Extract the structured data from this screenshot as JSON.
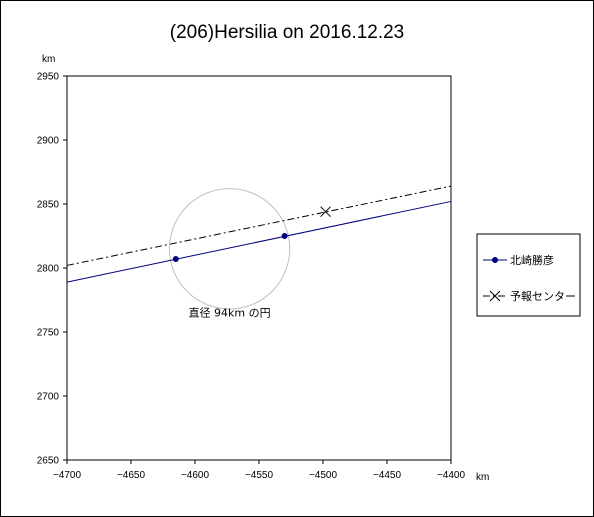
{
  "chart_data": {
    "type": "line",
    "title": "(206)Hersilia on 2016.12.23",
    "xlabel": "km",
    "ylabel": "km",
    "xlim": [
      -4700,
      -4400
    ],
    "ylim": [
      2650,
      2950
    ],
    "x_ticks": [
      -4700,
      -4650,
      -4600,
      -4550,
      -4500,
      -4450,
      -4400
    ],
    "y_ticks": [
      2650,
      2700,
      2750,
      2800,
      2850,
      2900,
      2950
    ],
    "x_tick_labels": [
      "−4700",
      "−4650",
      "−4600",
      "−4550",
      "−4500",
      "−4450",
      "−4400"
    ],
    "y_tick_labels": [
      "2650",
      "2700",
      "2750",
      "2800",
      "2850",
      "2900",
      "2950"
    ],
    "grid": false,
    "legend_position": "right",
    "series": [
      {
        "name": "北崎勝彦",
        "color": "#000080",
        "style": "solid",
        "line": [
          [
            -4700,
            2789
          ],
          [
            -4400,
            2852
          ]
        ],
        "points": [
          [
            -4615,
            2807
          ],
          [
            -4530,
            2825
          ]
        ]
      },
      {
        "name": "予報センター",
        "color": "#000000",
        "style": "dashdot",
        "line": [
          [
            -4700,
            2802
          ],
          [
            -4400,
            2864
          ]
        ],
        "points": [
          [
            -4498,
            2844
          ]
        ]
      }
    ],
    "circle": {
      "center": [
        -4573,
        2815
      ],
      "diameter": 94,
      "color": "#c0c0c0"
    },
    "annotation": {
      "text": "直径 94km の円",
      "x": -4573,
      "y": 2762
    }
  }
}
